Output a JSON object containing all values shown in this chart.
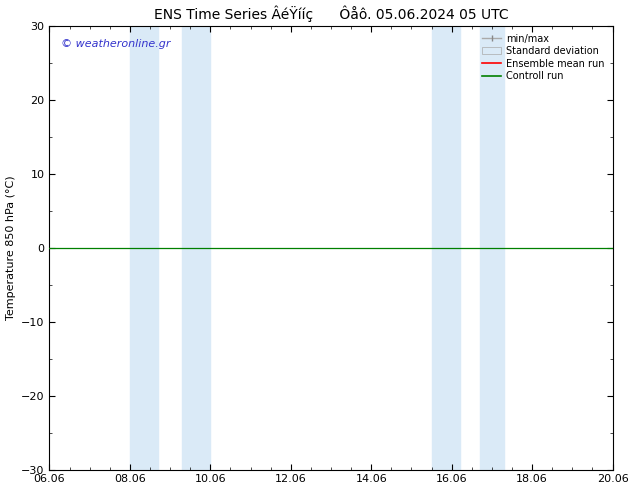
{
  "title_left": "ENS Time Series ÂéŸííç",
  "title_right": "Ôåô. 05.06.2024 05 UTC",
  "ylabel": "Temperature 850 hPa (°C)",
  "ylim": [
    -30,
    30
  ],
  "yticks": [
    -30,
    -20,
    -10,
    0,
    10,
    20,
    30
  ],
  "xtick_labels": [
    "06.06",
    "08.06",
    "10.06",
    "12.06",
    "14.06",
    "16.06",
    "18.06",
    "20.06"
  ],
  "xtick_positions": [
    0,
    2,
    4,
    6,
    8,
    10,
    12,
    14
  ],
  "shade_regions": [
    {
      "x_start": 2.0,
      "x_end": 2.7
    },
    {
      "x_start": 3.3,
      "x_end": 4.0
    },
    {
      "x_start": 9.5,
      "x_end": 10.2
    },
    {
      "x_start": 10.7,
      "x_end": 11.3
    }
  ],
  "shade_color": "#daeaf7",
  "background_color": "#ffffff",
  "watermark": "© weatheronline.gr",
  "watermark_color": "#3333cc",
  "legend_labels": [
    "min/max",
    "Standard deviation",
    "Ensemble mean run",
    "Controll run"
  ],
  "title_fontsize": 10,
  "axis_fontsize": 8,
  "tick_fontsize": 8
}
